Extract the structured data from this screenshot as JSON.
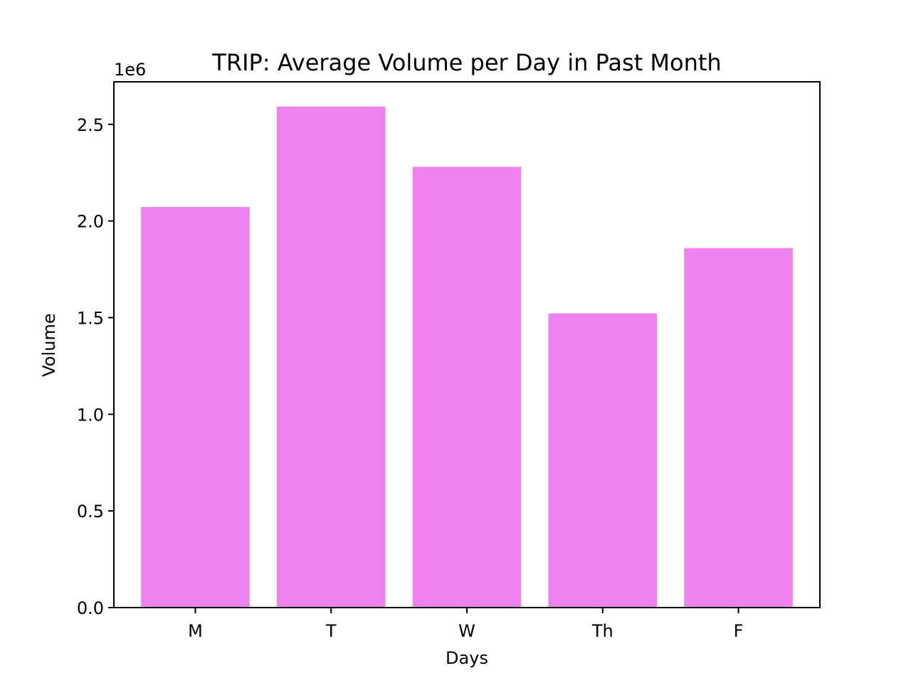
{
  "chart_data": {
    "type": "bar",
    "title": "TRIP: Average Volume per Day in Past Month",
    "xlabel": "Days",
    "ylabel": "Volume",
    "categories": [
      "M",
      "T",
      "W",
      "Th",
      "F"
    ],
    "values": [
      2072000,
      2592000,
      2280000,
      1522000,
      1860000
    ],
    "ylim": [
      0,
      2720000
    ],
    "y_ticks": [
      0,
      500000,
      1000000,
      1500000,
      2000000,
      2500000
    ],
    "y_tick_labels": [
      "0.0",
      "0.5",
      "1.0",
      "1.5",
      "2.0",
      "2.5"
    ],
    "y_offset_label": "1e6",
    "bar_color": "#ee82ee",
    "grid": false,
    "legend": "none"
  }
}
